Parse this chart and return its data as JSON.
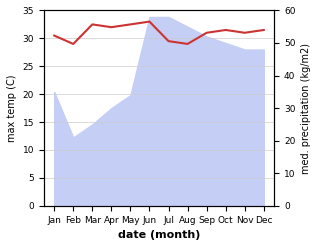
{
  "months": [
    "Jan",
    "Feb",
    "Mar",
    "Apr",
    "May",
    "Jun",
    "Jul",
    "Aug",
    "Sep",
    "Oct",
    "Nov",
    "Dec"
  ],
  "temp": [
    30.5,
    29.0,
    32.5,
    32.0,
    32.5,
    33.0,
    29.5,
    29.0,
    31.0,
    31.5,
    31.0,
    31.5
  ],
  "precip": [
    35,
    21,
    25,
    30,
    34,
    58,
    58,
    55,
    52,
    50,
    48,
    48
  ],
  "temp_color": "#cc3333",
  "precip_fill_color": "#c5cff5",
  "xlabel": "date (month)",
  "ylabel_left": "max temp (C)",
  "ylabel_right": "med. precipitation (kg/m2)",
  "ylim_left": [
    0,
    35
  ],
  "ylim_right": [
    0,
    60
  ],
  "yticks_left": [
    0,
    5,
    10,
    15,
    20,
    25,
    30,
    35
  ],
  "yticks_right": [
    0,
    10,
    20,
    30,
    40,
    50,
    60
  ],
  "bg_color": "#ffffff"
}
